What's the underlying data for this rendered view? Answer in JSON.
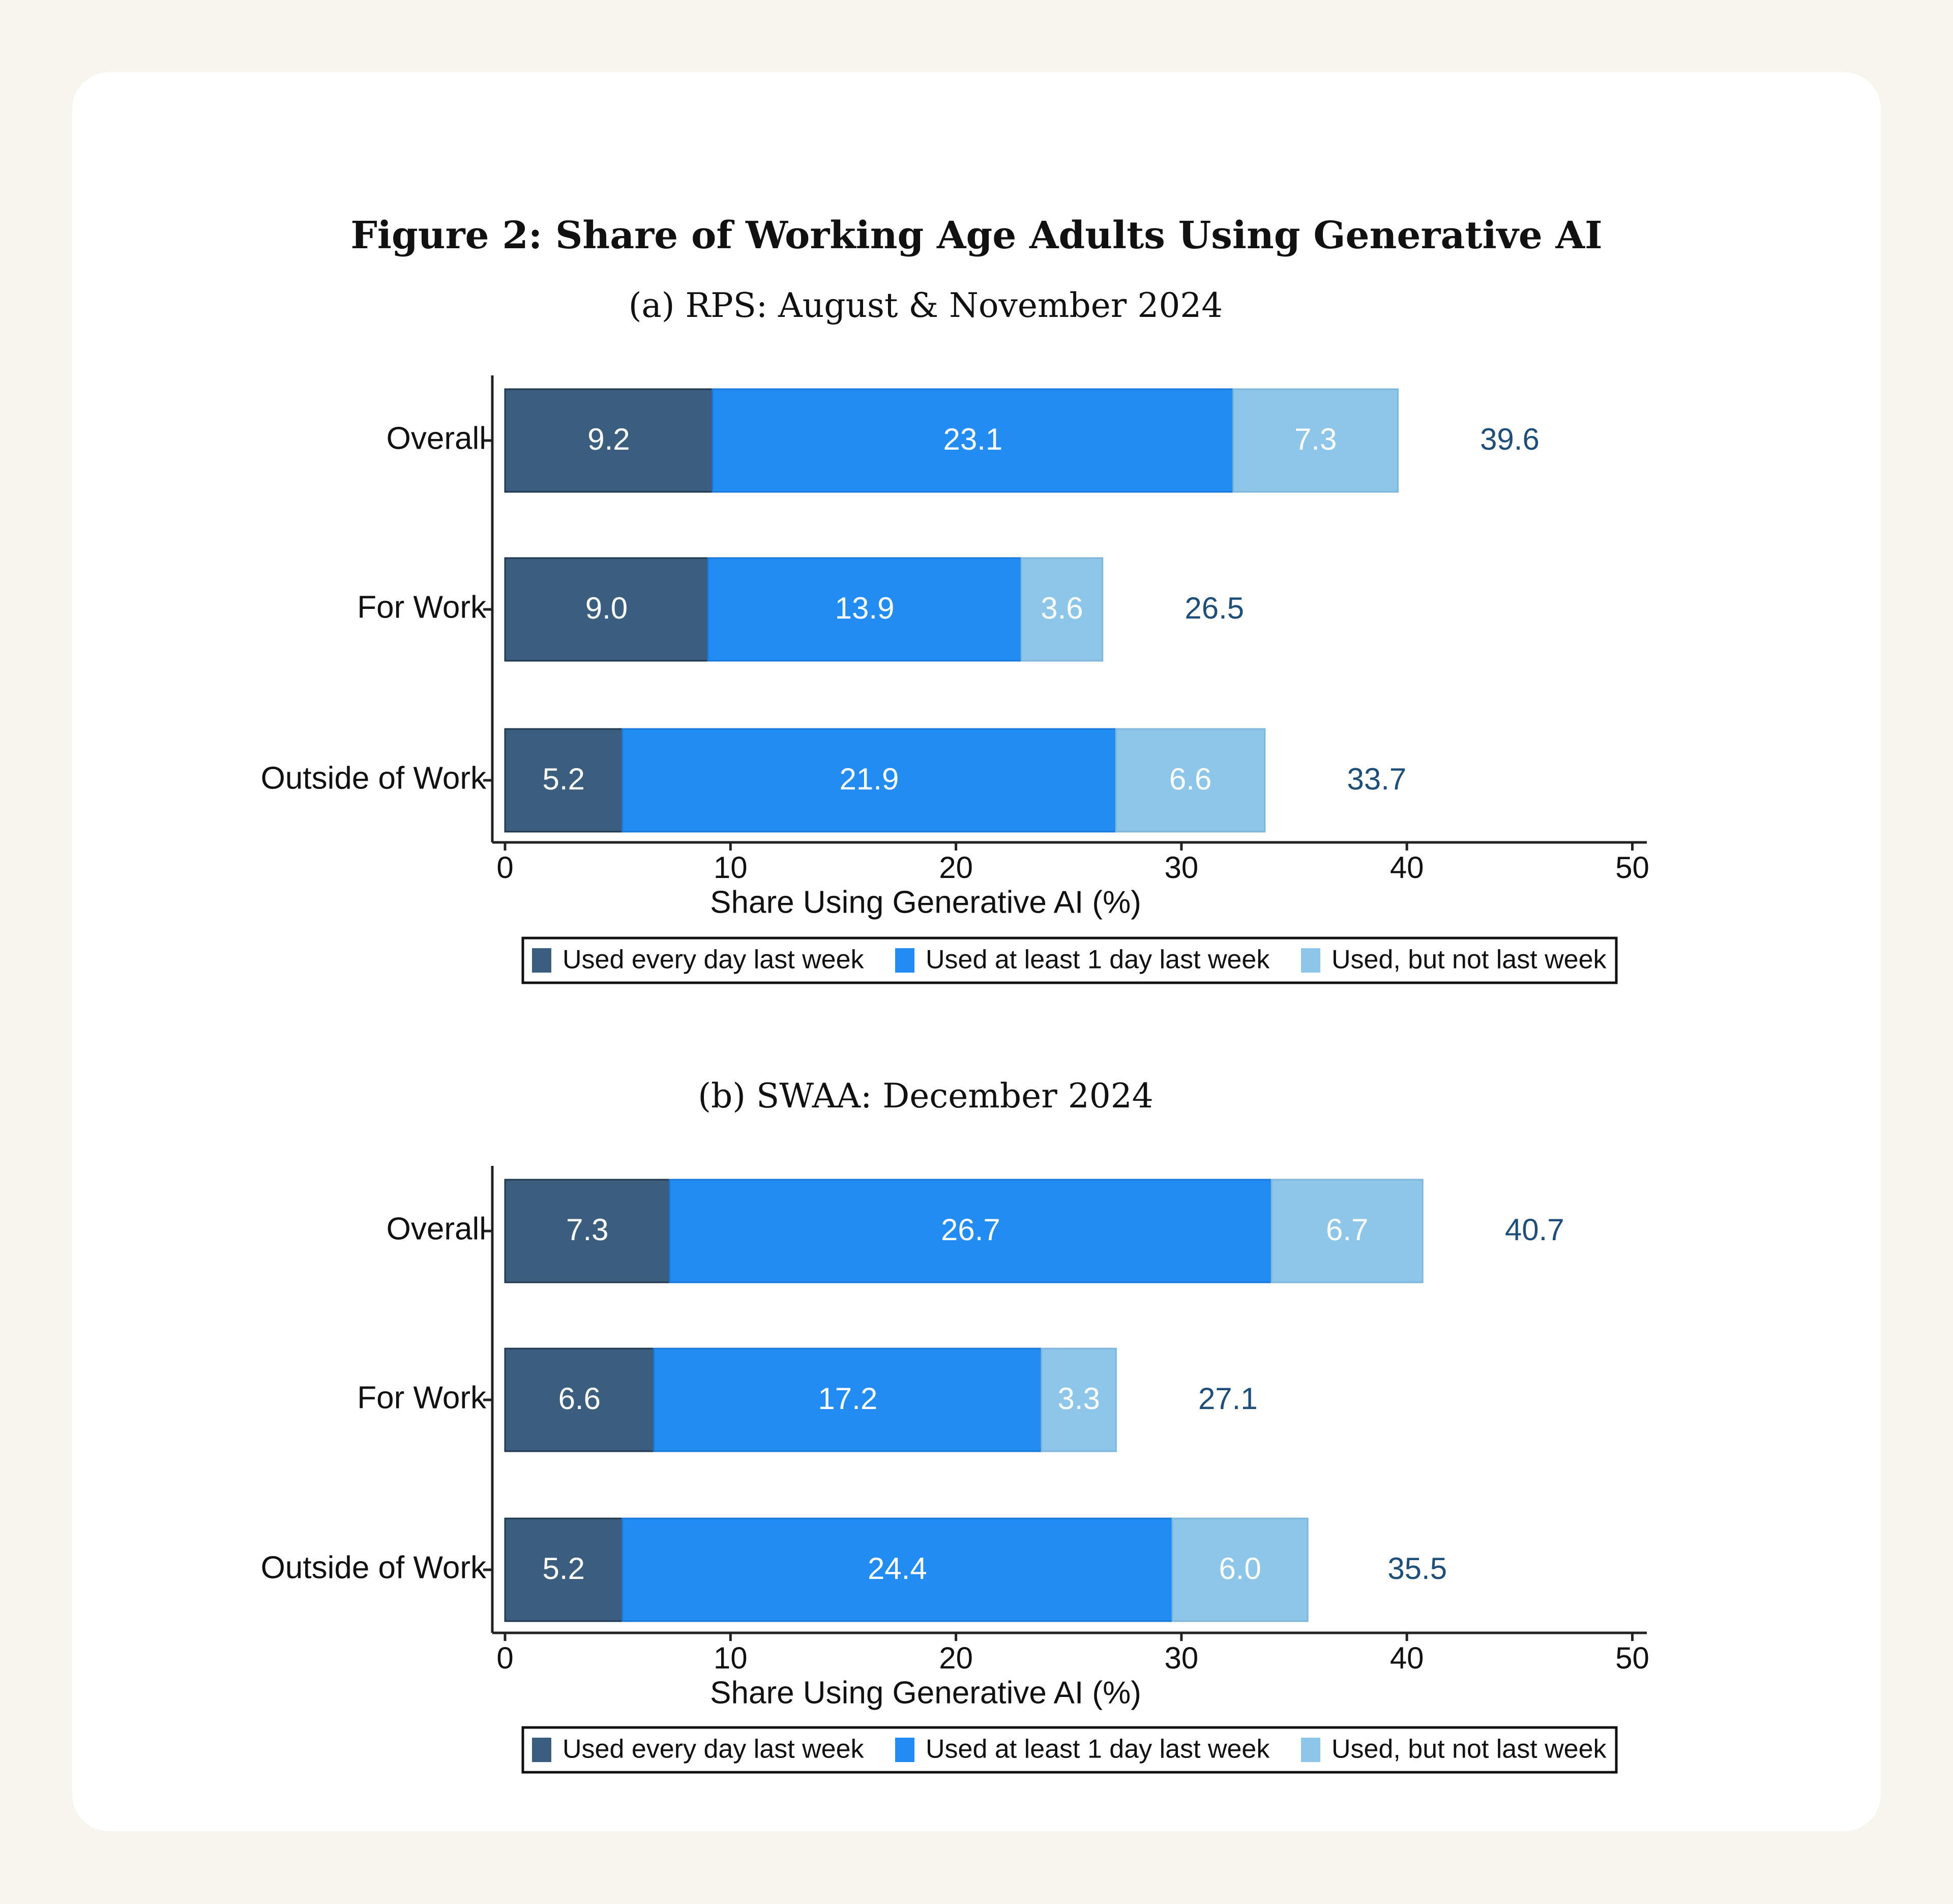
{
  "figure_title": "Figure 2: Share of Working Age Adults Using Generative AI",
  "colors": {
    "daily": "#3b5d7e",
    "weekly": "#238cf2",
    "not_last_week": "#8ec6ea",
    "total_label": "#1f4e79"
  },
  "chart_data": [
    {
      "type": "bar",
      "orientation": "horizontal",
      "stacked": true,
      "title": "(a) RPS: August & November 2024",
      "categories": [
        "Overall",
        "For Work",
        "Outside of Work"
      ],
      "series": [
        {
          "name": "Used every day last week",
          "values": [
            9.2,
            9.0,
            5.2
          ],
          "labels": [
            "9.2",
            "9.0",
            "5.2"
          ]
        },
        {
          "name": "Used at least 1 day last week",
          "values": [
            23.1,
            13.9,
            21.9
          ],
          "labels": [
            "23.1",
            "13.9",
            "21.9"
          ]
        },
        {
          "name": "Used, but not last week",
          "values": [
            7.3,
            3.6,
            6.6
          ],
          "labels": [
            "7.3",
            "3.6",
            "6.6"
          ]
        }
      ],
      "totals": [
        39.6,
        26.5,
        33.7
      ],
      "total_labels": [
        "39.6",
        "26.5",
        "33.7"
      ],
      "xlabel": "Share Using Generative AI (%)",
      "xlim": [
        0,
        50
      ],
      "xticks": [
        0,
        10,
        20,
        30,
        40,
        50
      ],
      "xtick_labels": [
        "0",
        "10",
        "20",
        "30",
        "40",
        "50"
      ],
      "legend_position": "bottom"
    },
    {
      "type": "bar",
      "orientation": "horizontal",
      "stacked": true,
      "title": "(b) SWAA: December 2024",
      "categories": [
        "Overall",
        "For Work",
        "Outside of Work"
      ],
      "series": [
        {
          "name": "Used every day last week",
          "values": [
            7.3,
            6.6,
            5.2
          ],
          "labels": [
            "7.3",
            "6.6",
            "5.2"
          ]
        },
        {
          "name": "Used at least 1 day last week",
          "values": [
            26.7,
            17.2,
            24.4
          ],
          "labels": [
            "26.7",
            "17.2",
            "24.4"
          ]
        },
        {
          "name": "Used, but not last week",
          "values": [
            6.7,
            3.3,
            6.0
          ],
          "labels": [
            "6.7",
            "3.3",
            "6.0"
          ]
        }
      ],
      "totals": [
        40.7,
        27.1,
        35.5
      ],
      "total_labels": [
        "40.7",
        "27.1",
        "35.5"
      ],
      "xlabel": "Share Using Generative AI (%)",
      "xlim": [
        0,
        50
      ],
      "xticks": [
        0,
        10,
        20,
        30,
        40,
        50
      ],
      "xtick_labels": [
        "0",
        "10",
        "20",
        "30",
        "40",
        "50"
      ],
      "legend_position": "bottom"
    }
  ]
}
